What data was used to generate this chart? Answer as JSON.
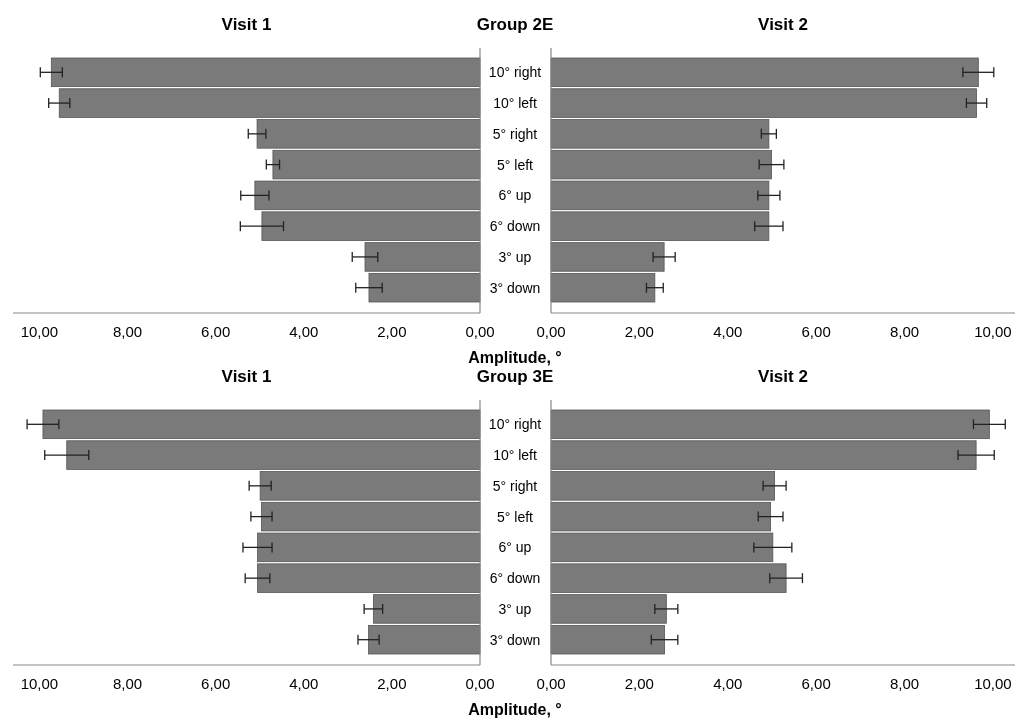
{
  "chart_data": [
    {
      "type": "bar",
      "orientation": "horizontal",
      "title": "Visit 1",
      "subtitle": "Group 2E",
      "xlabel": "Amplitude, °",
      "categories": [
        "10° right",
        "10° left",
        "5° right",
        "5° left",
        "6° up",
        "6° down",
        "3° up",
        "3° down"
      ],
      "values": [
        9.73,
        9.55,
        5.06,
        4.7,
        5.11,
        4.95,
        2.61,
        2.52
      ],
      "errors": [
        0.25,
        0.24,
        0.2,
        0.15,
        0.32,
        0.49,
        0.29,
        0.3
      ],
      "color": "#7a7a7a",
      "xlim": [
        10.6,
        0
      ],
      "xticks": [
        {
          "value": 10,
          "label": "10,00"
        },
        {
          "value": 8,
          "label": "8,00"
        },
        {
          "value": 6,
          "label": "6,00"
        },
        {
          "value": 4,
          "label": "4,00"
        },
        {
          "value": 2,
          "label": "2,00"
        },
        {
          "value": 0,
          "label": "0,00"
        }
      ]
    },
    {
      "type": "bar",
      "orientation": "horizontal",
      "title": "Visit 2",
      "categories": [
        null,
        null,
        null,
        null,
        null,
        null,
        null,
        null
      ],
      "values": [
        9.67,
        9.63,
        4.93,
        4.99,
        4.93,
        4.93,
        2.56,
        2.35
      ],
      "errors": [
        0.35,
        0.23,
        0.17,
        0.28,
        0.25,
        0.32,
        0.25,
        0.19
      ],
      "color": "#7a7a7a",
      "xlim": [
        0,
        10.5
      ],
      "xticks": [
        {
          "value": 0,
          "label": "0,00"
        },
        {
          "value": 2,
          "label": "2,00"
        },
        {
          "value": 4,
          "label": "4,00"
        },
        {
          "value": 6,
          "label": "6,00"
        },
        {
          "value": 8,
          "label": "8,00"
        },
        {
          "value": 10,
          "label": "10,00"
        }
      ],
      "tick_labels": "x"
    },
    {
      "type": "bar",
      "orientation": "horizontal",
      "title": "Visit 1",
      "subtitle": "Group 3E",
      "xlabel": "Amplitude, °",
      "categories": [
        "10° right",
        "10° left",
        "5° right",
        "5° left",
        "6° up",
        "6° down",
        "3° up",
        "3° down"
      ],
      "values": [
        9.92,
        9.38,
        4.99,
        4.96,
        5.05,
        5.05,
        2.42,
        2.53
      ],
      "errors": [
        0.36,
        0.5,
        0.25,
        0.24,
        0.33,
        0.28,
        0.21,
        0.24
      ],
      "color": "#7a7a7a",
      "xlim": [
        10.6,
        0
      ],
      "xticks": [
        {
          "value": 10,
          "label": "10,00"
        },
        {
          "value": 8,
          "label": "8,00"
        },
        {
          "value": 6,
          "label": "6,00"
        },
        {
          "value": 4,
          "label": "4,00"
        },
        {
          "value": 2,
          "label": "2,00"
        },
        {
          "value": 0,
          "label": "0,00"
        }
      ]
    },
    {
      "type": "bar",
      "orientation": "horizontal",
      "title": "Visit 2",
      "categories": [
        null,
        null,
        null,
        null,
        null,
        null,
        null,
        null
      ],
      "values": [
        9.92,
        9.62,
        5.06,
        4.97,
        5.02,
        5.32,
        2.61,
        2.57
      ],
      "errors": [
        0.36,
        0.41,
        0.26,
        0.28,
        0.43,
        0.37,
        0.26,
        0.3
      ],
      "color": "#7a7a7a",
      "xlim": [
        0,
        10.5
      ],
      "xticks": [
        {
          "value": 0,
          "label": "0,00"
        },
        {
          "value": 2,
          "label": "2,00"
        },
        {
          "value": 4,
          "label": "4,00"
        },
        {
          "value": 6,
          "label": "6,00"
        },
        {
          "value": 8,
          "label": "8,00"
        },
        {
          "value": 10,
          "label": "10,00"
        }
      ],
      "tick_labels": "x"
    }
  ]
}
